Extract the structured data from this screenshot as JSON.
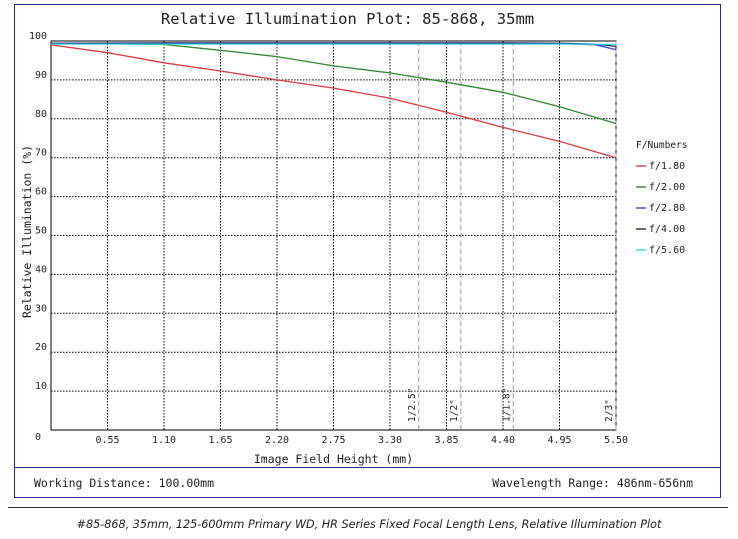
{
  "chart_data": {
    "type": "line",
    "title": "Relative Illumination Plot: 85-868, 35mm",
    "xlabel": "Image Field Height (mm)",
    "ylabel": "Relative Illumination (%)",
    "xlim": [
      0,
      5.5
    ],
    "ylim": [
      0,
      100
    ],
    "x_ticks": [
      0.55,
      1.1,
      1.65,
      2.2,
      2.75,
      3.3,
      3.85,
      4.4,
      4.95,
      5.5
    ],
    "x_tick_labels": [
      "0.55",
      "1.10",
      "1.65",
      "2.20",
      "2.75",
      "3.30",
      "3.85",
      "4.40",
      "4.95",
      "5.50"
    ],
    "y_ticks": [
      10,
      20,
      30,
      40,
      50,
      60,
      70,
      80,
      90,
      100
    ],
    "y_tick_labels": [
      "10",
      "20",
      "30",
      "40",
      "50",
      "60",
      "70",
      "80",
      "90",
      "100"
    ],
    "origin_label": "0",
    "legend_title": "F/Numbers",
    "series": [
      {
        "name": "f/1.80",
        "color": "#e03a3a",
        "x": [
          0,
          0.55,
          1.1,
          1.65,
          2.2,
          2.75,
          3.3,
          3.85,
          4.4,
          4.95,
          5.5
        ],
        "y": [
          99.0,
          97.0,
          94.4,
          92.3,
          90.0,
          87.9,
          85.3,
          81.7,
          77.8,
          74.2,
          70.0
        ]
      },
      {
        "name": "f/2.00",
        "color": "#2e8b2e",
        "x": [
          0,
          0.55,
          1.1,
          1.65,
          2.2,
          2.75,
          3.3,
          3.85,
          4.4,
          4.95,
          5.5
        ],
        "y": [
          99.3,
          99.3,
          99.1,
          97.6,
          96.0,
          93.6,
          91.8,
          89.4,
          86.8,
          83.1,
          78.8
        ]
      },
      {
        "name": "f/2.80",
        "color": "#2a4fd6",
        "x": [
          0,
          1.1,
          2.2,
          3.3,
          4.4,
          5.0,
          5.3,
          5.5
        ],
        "y": [
          99.3,
          99.4,
          99.4,
          99.4,
          99.4,
          99.3,
          99.0,
          97.8
        ]
      },
      {
        "name": "f/4.00",
        "color": "#1d2a7a",
        "x": [
          0,
          1.1,
          2.2,
          3.3,
          4.4,
          5.0,
          5.3,
          5.5
        ],
        "y": [
          99.4,
          99.5,
          99.5,
          99.5,
          99.5,
          99.4,
          99.2,
          98.6
        ]
      },
      {
        "name": "f/5.60",
        "color": "#3fd6e0",
        "x": [
          0,
          1.1,
          2.2,
          3.3,
          4.4,
          5.0,
          5.3,
          5.5
        ],
        "y": [
          99.2,
          99.2,
          99.2,
          99.2,
          99.2,
          99.2,
          99.2,
          99.1
        ]
      }
    ],
    "sensor_markers": [
      {
        "label": "1/2.5\"",
        "x": 3.58
      },
      {
        "label": "1/2\"",
        "x": 3.99
      },
      {
        "label": "1/1.8\"",
        "x": 4.5
      },
      {
        "label": "2/3\"",
        "x": 5.5
      }
    ]
  },
  "footer": {
    "working_distance": "Working Distance: 100.00mm",
    "wavelength_range": "Wavelength Range: 486nm-656nm"
  },
  "caption": "#85-868, 35mm, 125-600mm Primary WD, HR Series Fixed Focal Length Lens, Relative Illumination Plot"
}
